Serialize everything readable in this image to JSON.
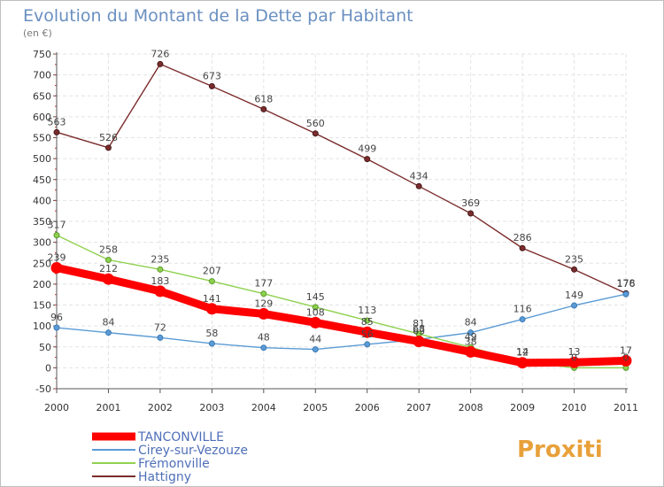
{
  "chart_data": {
    "type": "line",
    "title": "Evolution du Montant de la Dette par Habitant",
    "subtitle": "(en €)",
    "x": [
      "2000",
      "2001",
      "2002",
      "2003",
      "2004",
      "2005",
      "2006",
      "2007",
      "2008",
      "2009",
      "2010",
      "2011"
    ],
    "ylim": [
      -50,
      750
    ],
    "yticks": [
      -50,
      0,
      50,
      100,
      150,
      200,
      250,
      300,
      350,
      400,
      450,
      500,
      550,
      600,
      650,
      700,
      750
    ],
    "grid": true,
    "legend_position": "bottom-left",
    "series": [
      {
        "name": "TANCONVILLE",
        "color": "#ff0000",
        "values": [
          239,
          212,
          183,
          141,
          129,
          108,
          85,
          63,
          38,
          12,
          13,
          17
        ]
      },
      {
        "name": "Cirey-sur-Vezouze",
        "color": "#5b9bd5",
        "values": [
          96,
          84,
          72,
          58,
          48,
          44,
          56,
          68,
          84,
          116,
          149,
          176
        ]
      },
      {
        "name": "Frémonville",
        "color": "#8fd14f",
        "values": [
          317,
          258,
          235,
          207,
          177,
          145,
          113,
          81,
          49,
          14,
          0,
          0
        ]
      },
      {
        "name": "Hattigny",
        "color": "#7b2c2c",
        "values": [
          563,
          526,
          726,
          673,
          618,
          560,
          499,
          434,
          369,
          286,
          235,
          178
        ]
      }
    ]
  },
  "logo": {
    "text": "Proxiti"
  }
}
